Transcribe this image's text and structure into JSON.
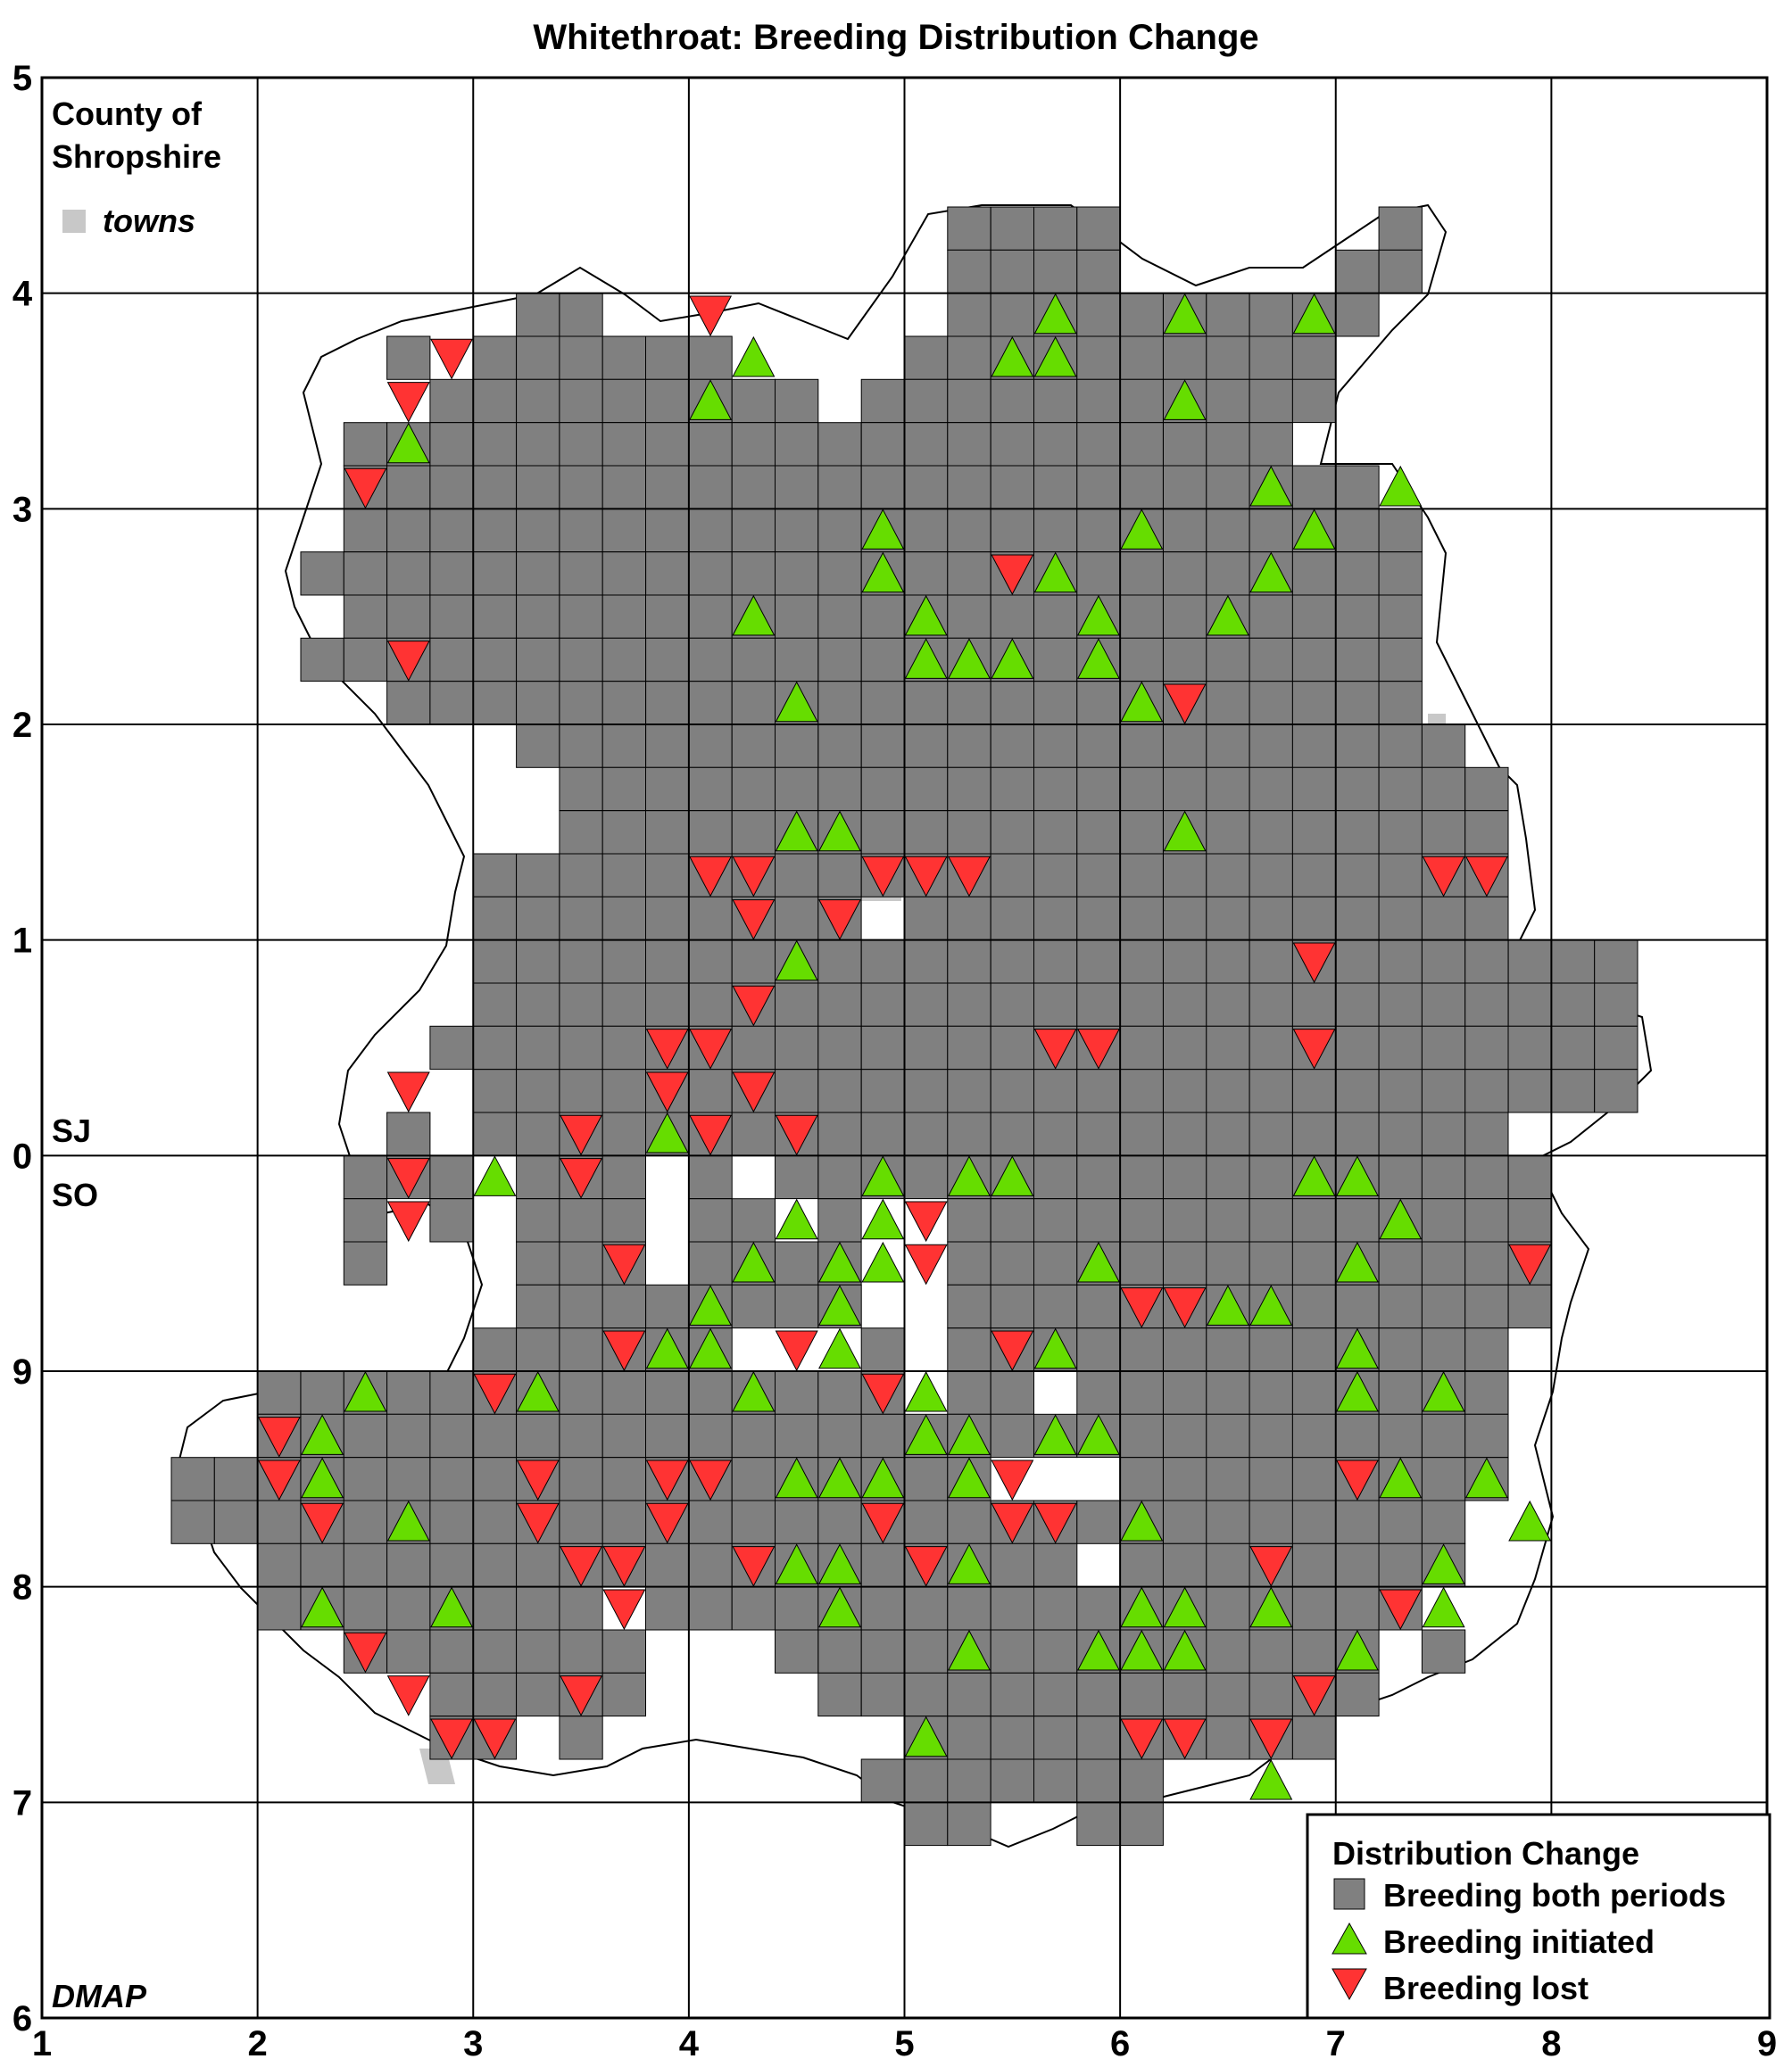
{
  "title": "Whitethroat: Breeding Distribution Change",
  "county_label_line1": "County of",
  "county_label_line2": "Shropshire",
  "towns_label": "towns",
  "grid_upper_label": "SJ",
  "grid_lower_label": "SO",
  "credit": "DMAP",
  "legend": {
    "title": "Distribution Change",
    "both": "Breeding both periods",
    "initiated": "Breeding initiated",
    "lost": "Breeding lost"
  },
  "colors": {
    "both": "#808080",
    "initiated": "#66dd00",
    "lost": "#ff3333",
    "towns": "#c8c8c8"
  },
  "icons": {
    "both": "gray-square-icon",
    "initiated": "green-up-triangle-icon",
    "lost": "red-down-triangle-icon",
    "towns": "gray-town-square-icon"
  },
  "chart_data": {
    "type": "grid-map",
    "x_ticks": [
      "1",
      "2",
      "3",
      "4",
      "5",
      "6",
      "7",
      "8",
      "9"
    ],
    "y_ticks": [
      "5",
      "4",
      "3",
      "2",
      "1",
      "0",
      "9",
      "8",
      "7",
      "6"
    ],
    "rows": [
      {
        "y": 4.4,
        "both": [
          [
            5.2,
            6.0
          ],
          [
            7.2,
            7.4
          ]
        ]
      },
      {
        "y": 4.2,
        "both": [
          [
            5.2,
            6.0
          ],
          [
            7.0,
            7.4
          ]
        ]
      },
      {
        "y": 4.0,
        "both": [
          [
            3.2,
            3.6
          ],
          [
            5.2,
            7.2
          ]
        ]
      },
      {
        "y": 3.8,
        "both": [
          [
            2.6,
            2.8
          ],
          [
            3.0,
            4.2
          ],
          [
            5.0,
            7.0
          ]
        ]
      },
      {
        "y": 3.6,
        "both": [
          [
            2.8,
            4.6
          ],
          [
            4.8,
            7.0
          ]
        ]
      },
      {
        "y": 3.4,
        "both": [
          [
            2.4,
            6.8
          ]
        ]
      },
      {
        "y": 3.2,
        "both": [
          [
            2.4,
            6.8
          ],
          [
            6.8,
            7.2
          ]
        ]
      },
      {
        "y": 3.0,
        "both": [
          [
            2.4,
            7.4
          ]
        ]
      },
      {
        "y": 2.8,
        "both": [
          [
            2.2,
            7.4
          ]
        ]
      },
      {
        "y": 2.6,
        "both": [
          [
            2.4,
            7.4
          ]
        ]
      },
      {
        "y": 2.4,
        "both": [
          [
            2.2,
            7.4
          ]
        ]
      },
      {
        "y": 2.2,
        "both": [
          [
            2.6,
            7.4
          ]
        ]
      },
      {
        "y": 2.0,
        "both": [
          [
            3.2,
            7.6
          ]
        ]
      },
      {
        "y": 1.8,
        "both": [
          [
            3.4,
            7.8
          ]
        ]
      },
      {
        "y": 1.6,
        "both": [
          [
            3.4,
            7.8
          ]
        ]
      },
      {
        "y": 1.4,
        "both": [
          [
            3.0,
            7.8
          ]
        ]
      },
      {
        "y": 1.2,
        "both": [
          [
            3.0,
            4.8
          ],
          [
            5.0,
            7.8
          ]
        ]
      },
      {
        "y": 1.0,
        "both": [
          [
            3.0,
            8.4
          ]
        ]
      },
      {
        "y": 0.8,
        "both": [
          [
            3.0,
            8.4
          ]
        ]
      },
      {
        "y": 0.6,
        "both": [
          [
            2.8,
            8.4
          ]
        ]
      },
      {
        "y": 0.4,
        "both": [
          [
            3.0,
            8.4
          ]
        ]
      },
      {
        "y": 0.2,
        "both": [
          [
            2.6,
            2.8
          ],
          [
            3.0,
            7.8
          ]
        ]
      },
      {
        "y": 0.0,
        "both": [
          [
            2.4,
            3.0
          ],
          [
            3.2,
            3.8
          ],
          [
            4.0,
            4.2
          ],
          [
            4.4,
            8.0
          ]
        ]
      },
      {
        "y": -0.2,
        "both": [
          [
            2.4,
            2.6
          ],
          [
            2.8,
            3.0
          ],
          [
            3.2,
            3.8
          ],
          [
            4.0,
            4.4
          ],
          [
            4.6,
            4.8
          ],
          [
            5.2,
            8.0
          ]
        ]
      },
      {
        "y": -0.4,
        "both": [
          [
            2.4,
            2.6
          ],
          [
            3.2,
            3.8
          ],
          [
            4.0,
            4.8
          ],
          [
            5.2,
            8.0
          ]
        ]
      },
      {
        "y": -0.6,
        "both": [
          [
            3.2,
            4.8
          ],
          [
            5.2,
            8.0
          ]
        ]
      },
      {
        "y": -0.8,
        "both": [
          [
            3.0,
            4.2
          ],
          [
            4.8,
            5.0
          ],
          [
            5.2,
            7.8
          ]
        ]
      },
      {
        "y": -1.0,
        "both": [
          [
            2.0,
            5.0
          ],
          [
            5.2,
            5.6
          ],
          [
            5.8,
            7.8
          ]
        ]
      },
      {
        "y": -1.2,
        "both": [
          [
            2.0,
            7.8
          ]
        ]
      },
      {
        "y": -1.4,
        "both": [
          [
            1.6,
            5.4
          ],
          [
            6.0,
            7.8
          ]
        ]
      },
      {
        "y": -1.6,
        "both": [
          [
            1.6,
            7.6
          ]
        ]
      },
      {
        "y": -1.8,
        "both": [
          [
            2.0,
            5.8
          ],
          [
            6.0,
            7.6
          ]
        ]
      },
      {
        "y": -2.0,
        "both": [
          [
            2.0,
            3.6
          ],
          [
            3.8,
            7.4
          ]
        ]
      },
      {
        "y": -2.2,
        "both": [
          [
            2.4,
            3.8
          ],
          [
            4.4,
            7.2
          ],
          [
            7.4,
            7.6
          ]
        ]
      },
      {
        "y": -2.4,
        "both": [
          [
            2.8,
            3.8
          ],
          [
            4.6,
            5.0
          ],
          [
            5.0,
            7.2
          ]
        ]
      },
      {
        "y": -2.6,
        "both": [
          [
            2.8,
            3.2
          ],
          [
            3.4,
            3.6
          ],
          [
            5.0,
            7.0
          ]
        ]
      },
      {
        "y": -2.8,
        "both": [
          [
            4.8,
            6.2
          ]
        ]
      },
      {
        "y": -3.0,
        "both": [
          [
            5.0,
            5.4
          ],
          [
            5.8,
            6.2
          ]
        ]
      }
    ],
    "initiated": [
      [
        5.7,
        3.9
      ],
      [
        6.3,
        3.9
      ],
      [
        6.9,
        3.9
      ],
      [
        4.3,
        3.7
      ],
      [
        5.5,
        3.7
      ],
      [
        5.7,
        3.7
      ],
      [
        4.1,
        3.5
      ],
      [
        6.3,
        3.5
      ],
      [
        2.7,
        3.3
      ],
      [
        6.7,
        3.1
      ],
      [
        7.3,
        3.1
      ],
      [
        4.9,
        2.9
      ],
      [
        6.1,
        2.9
      ],
      [
        6.9,
        2.9
      ],
      [
        4.9,
        2.7
      ],
      [
        5.7,
        2.7
      ],
      [
        6.7,
        2.7
      ],
      [
        4.3,
        2.5
      ],
      [
        5.1,
        2.5
      ],
      [
        5.9,
        2.5
      ],
      [
        6.5,
        2.5
      ],
      [
        5.1,
        2.3
      ],
      [
        5.3,
        2.3
      ],
      [
        5.5,
        2.3
      ],
      [
        5.9,
        2.3
      ],
      [
        4.5,
        2.1
      ],
      [
        6.1,
        2.1
      ],
      [
        4.5,
        1.5
      ],
      [
        4.7,
        1.5
      ],
      [
        6.3,
        1.5
      ],
      [
        4.5,
        0.9
      ],
      [
        3.9,
        0.1
      ],
      [
        3.1,
        -0.1
      ],
      [
        4.9,
        -0.1
      ],
      [
        5.3,
        -0.1
      ],
      [
        5.5,
        -0.1
      ],
      [
        6.9,
        -0.1
      ],
      [
        7.1,
        -0.1
      ],
      [
        4.5,
        -0.3
      ],
      [
        4.9,
        -0.3
      ],
      [
        7.3,
        -0.3
      ],
      [
        4.3,
        -0.5
      ],
      [
        4.7,
        -0.5
      ],
      [
        4.9,
        -0.5
      ],
      [
        5.9,
        -0.5
      ],
      [
        7.1,
        -0.5
      ],
      [
        4.1,
        -0.7
      ],
      [
        6.5,
        -0.7
      ],
      [
        6.7,
        -0.7
      ],
      [
        4.7,
        -0.7
      ],
      [
        3.9,
        -0.9
      ],
      [
        4.1,
        -0.9
      ],
      [
        4.7,
        -0.9
      ],
      [
        5.7,
        -0.9
      ],
      [
        7.1,
        -0.9
      ],
      [
        2.5,
        -1.1
      ],
      [
        3.3,
        -1.1
      ],
      [
        4.3,
        -1.1
      ],
      [
        5.1,
        -1.1
      ],
      [
        7.1,
        -1.1
      ],
      [
        7.5,
        -1.1
      ],
      [
        2.3,
        -1.3
      ],
      [
        5.1,
        -1.3
      ],
      [
        5.3,
        -1.3
      ],
      [
        5.7,
        -1.3
      ],
      [
        5.9,
        -1.3
      ],
      [
        2.3,
        -1.5
      ],
      [
        4.5,
        -1.5
      ],
      [
        4.7,
        -1.5
      ],
      [
        4.9,
        -1.5
      ],
      [
        5.3,
        -1.5
      ],
      [
        7.3,
        -1.5
      ],
      [
        7.7,
        -1.5
      ],
      [
        2.7,
        -1.7
      ],
      [
        6.1,
        -1.7
      ],
      [
        7.9,
        -1.7
      ],
      [
        4.5,
        -1.9
      ],
      [
        4.7,
        -1.9
      ],
      [
        5.3,
        -1.9
      ],
      [
        7.5,
        -1.9
      ],
      [
        2.3,
        -2.1
      ],
      [
        2.9,
        -2.1
      ],
      [
        4.7,
        -2.1
      ],
      [
        6.1,
        -2.1
      ],
      [
        6.3,
        -2.1
      ],
      [
        6.7,
        -2.1
      ],
      [
        7.5,
        -2.1
      ],
      [
        5.3,
        -2.3
      ],
      [
        5.9,
        -2.3
      ],
      [
        6.1,
        -2.3
      ],
      [
        6.3,
        -2.3
      ],
      [
        7.1,
        -2.3
      ],
      [
        5.1,
        -2.7
      ],
      [
        6.7,
        -2.9
      ]
    ],
    "lost": [
      [
        4.1,
        3.9
      ],
      [
        2.9,
        3.7
      ],
      [
        2.7,
        3.5
      ],
      [
        2.5,
        3.1
      ],
      [
        5.5,
        2.7
      ],
      [
        2.7,
        2.3
      ],
      [
        6.3,
        2.1
      ],
      [
        4.1,
        1.3
      ],
      [
        4.3,
        1.3
      ],
      [
        4.9,
        1.3
      ],
      [
        5.1,
        1.3
      ],
      [
        5.3,
        1.3
      ],
      [
        7.5,
        1.3
      ],
      [
        7.7,
        1.3
      ],
      [
        4.3,
        1.1
      ],
      [
        4.7,
        1.1
      ],
      [
        6.9,
        0.9
      ],
      [
        4.3,
        0.7
      ],
      [
        3.9,
        0.5
      ],
      [
        4.1,
        0.5
      ],
      [
        5.7,
        0.5
      ],
      [
        5.9,
        0.5
      ],
      [
        6.9,
        0.5
      ],
      [
        2.7,
        0.3
      ],
      [
        3.9,
        0.3
      ],
      [
        4.3,
        0.3
      ],
      [
        3.5,
        0.1
      ],
      [
        4.1,
        0.1
      ],
      [
        4.5,
        0.1
      ],
      [
        2.7,
        -0.1
      ],
      [
        3.5,
        -0.1
      ],
      [
        2.7,
        -0.3
      ],
      [
        5.1,
        -0.3
      ],
      [
        3.7,
        -0.5
      ],
      [
        5.1,
        -0.5
      ],
      [
        7.9,
        -0.5
      ],
      [
        6.1,
        -0.7
      ],
      [
        6.3,
        -0.7
      ],
      [
        3.7,
        -0.9
      ],
      [
        4.5,
        -0.9
      ],
      [
        5.5,
        -0.9
      ],
      [
        3.1,
        -1.1
      ],
      [
        4.9,
        -1.1
      ],
      [
        2.1,
        -1.3
      ],
      [
        2.1,
        -1.5
      ],
      [
        3.3,
        -1.5
      ],
      [
        3.9,
        -1.5
      ],
      [
        4.1,
        -1.5
      ],
      [
        5.5,
        -1.5
      ],
      [
        7.1,
        -1.5
      ],
      [
        2.3,
        -1.7
      ],
      [
        3.3,
        -1.7
      ],
      [
        3.9,
        -1.7
      ],
      [
        4.9,
        -1.7
      ],
      [
        5.5,
        -1.7
      ],
      [
        5.7,
        -1.7
      ],
      [
        3.5,
        -1.9
      ],
      [
        3.7,
        -1.9
      ],
      [
        4.3,
        -1.9
      ],
      [
        5.1,
        -1.9
      ],
      [
        6.7,
        -1.9
      ],
      [
        3.7,
        -2.1
      ],
      [
        7.3,
        -2.1
      ],
      [
        2.5,
        -2.3
      ],
      [
        2.7,
        -2.5
      ],
      [
        3.5,
        -2.5
      ],
      [
        6.9,
        -2.5
      ],
      [
        2.9,
        -2.7
      ],
      [
        3.1,
        -2.7
      ],
      [
        6.1,
        -2.7
      ],
      [
        6.3,
        -2.7
      ],
      [
        6.7,
        -2.7
      ]
    ]
  }
}
